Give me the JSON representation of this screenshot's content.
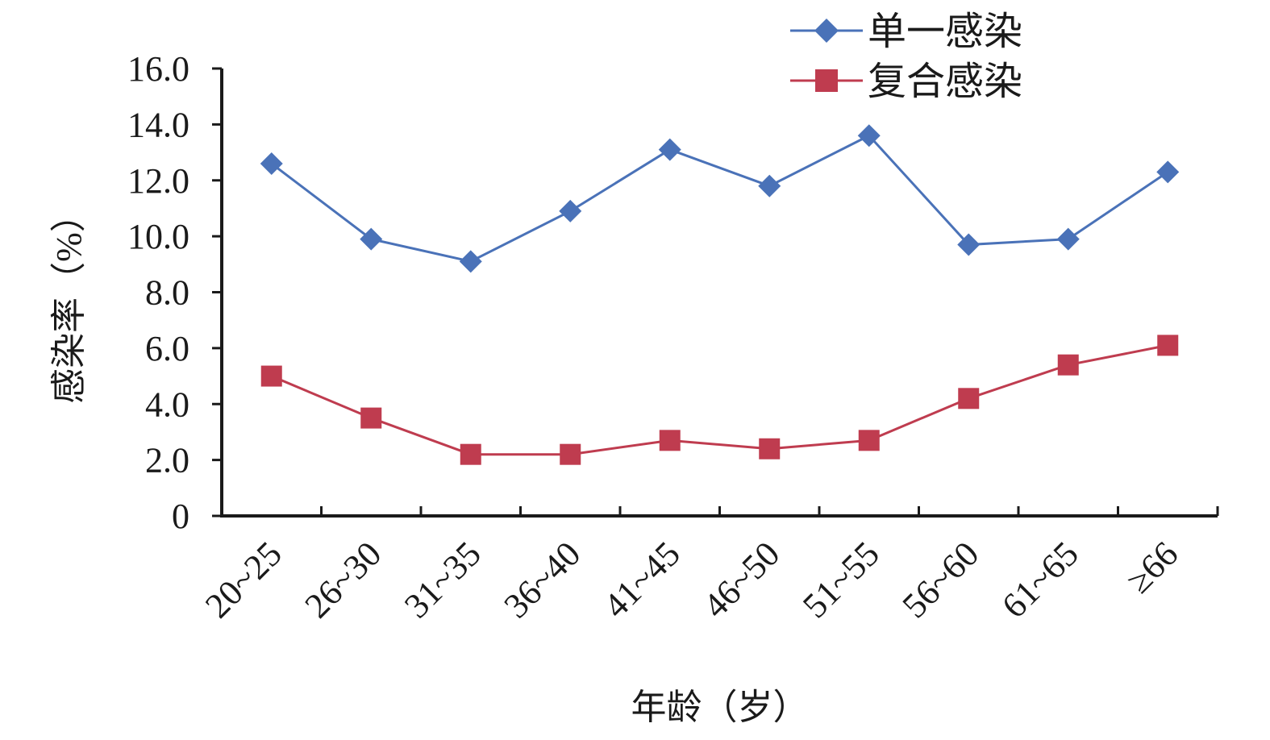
{
  "chart_data": {
    "type": "line",
    "categories": [
      "20~25",
      "26~30",
      "31~35",
      "36~40",
      "41~45",
      "46~50",
      "51~55",
      "56~60",
      "61~65",
      "≥66"
    ],
    "series": [
      {
        "name": "单一感染",
        "color": "#4a72b8",
        "marker": "diamond",
        "values": [
          12.6,
          9.9,
          9.1,
          10.9,
          13.1,
          11.8,
          13.6,
          9.7,
          9.9,
          12.3
        ]
      },
      {
        "name": "复合感染",
        "color": "#bf3c4f",
        "marker": "square",
        "values": [
          5.0,
          3.5,
          2.2,
          2.2,
          2.7,
          2.4,
          2.7,
          4.2,
          5.4,
          6.1
        ]
      }
    ],
    "xlabel": "年龄（岁）",
    "ylabel": "感染率（%）",
    "ylim": [
      0,
      16
    ],
    "yticks": [
      "0",
      "2.0",
      "4.0",
      "6.0",
      "8.0",
      "10.0",
      "12.0",
      "14.0",
      "16.0"
    ],
    "grid": false,
    "legend_position": "top-right"
  }
}
